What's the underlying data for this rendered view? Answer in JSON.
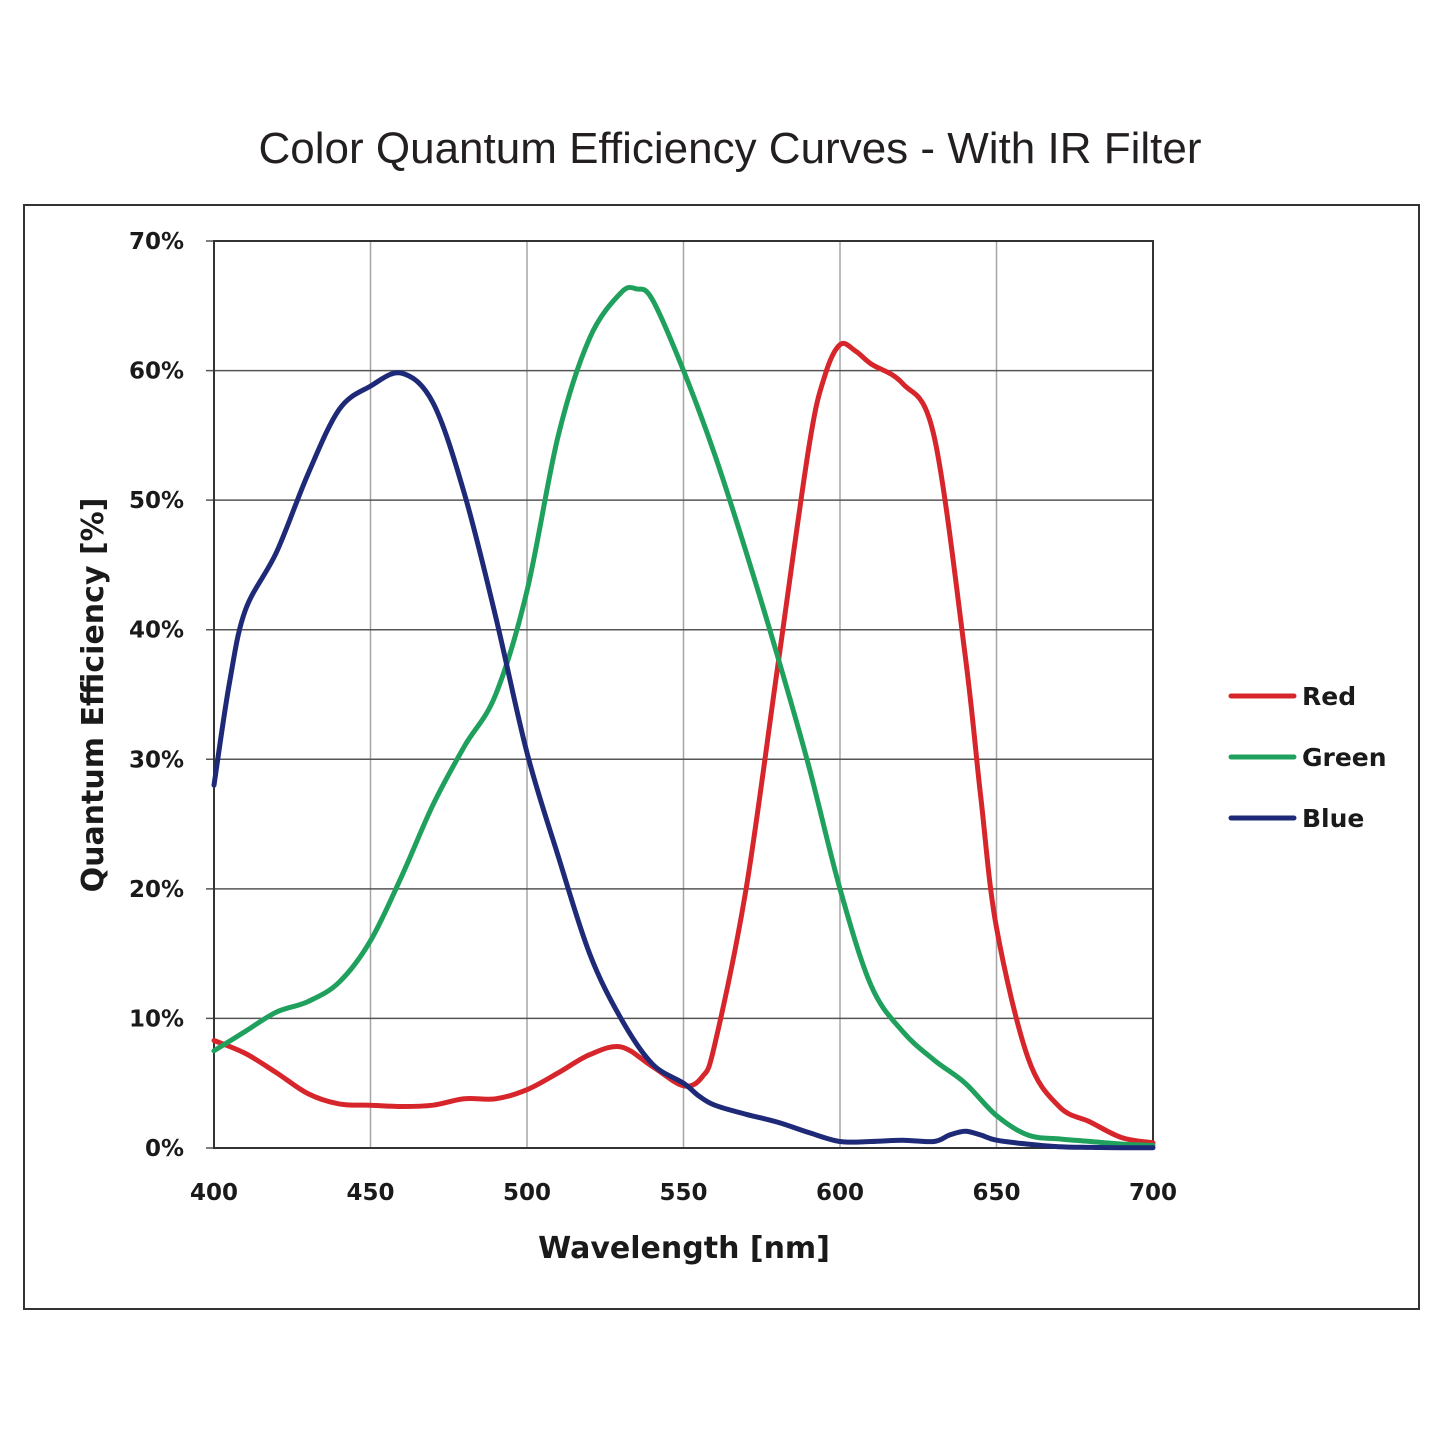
{
  "chart_data": {
    "type": "line",
    "title": "Color Quantum Efficiency Curves - With IR Filter",
    "xlabel": "Wavelength [nm]",
    "ylabel": "Quantum Efficiency [%]",
    "xlim": [
      400,
      700
    ],
    "ylim": [
      0,
      70
    ],
    "x_ticks": [
      400,
      450,
      500,
      550,
      600,
      650,
      700
    ],
    "y_ticks": [
      0,
      10,
      20,
      30,
      40,
      50,
      60,
      70
    ],
    "y_tick_labels": [
      "0%",
      "10%",
      "20%",
      "30%",
      "40%",
      "50%",
      "60%",
      "70%"
    ],
    "grid": true,
    "legend_position": "right",
    "series": [
      {
        "name": "Red",
        "color": "#d7262b",
        "x": [
          400,
          410,
          420,
          430,
          440,
          450,
          460,
          470,
          480,
          490,
          500,
          510,
          520,
          530,
          540,
          550,
          556,
          560,
          570,
          580,
          590,
          595,
          600,
          605,
          610,
          620,
          630,
          640,
          645,
          650,
          660,
          670,
          680,
          690,
          700
        ],
        "y": [
          8.3,
          7.3,
          5.8,
          4.2,
          3.4,
          3.3,
          3.2,
          3.3,
          3.8,
          3.8,
          4.5,
          5.8,
          7.2,
          7.8,
          6.3,
          4.8,
          5.5,
          8.0,
          20.0,
          37.0,
          54.0,
          59.5,
          62.0,
          61.5,
          60.5,
          59.0,
          55.0,
          38.0,
          27.0,
          17.0,
          7.0,
          3.2,
          2.0,
          0.8,
          0.4
        ]
      },
      {
        "name": "Green",
        "color": "#1fa15d",
        "x": [
          400,
          410,
          420,
          430,
          440,
          450,
          460,
          470,
          480,
          490,
          500,
          510,
          520,
          530,
          535,
          540,
          550,
          560,
          570,
          580,
          590,
          600,
          610,
          620,
          630,
          640,
          650,
          660,
          670,
          680,
          690,
          700
        ],
        "y": [
          7.5,
          9.0,
          10.5,
          11.3,
          12.8,
          16.0,
          21.0,
          26.5,
          31.0,
          35.0,
          43.0,
          55.0,
          62.5,
          66.0,
          66.3,
          65.5,
          60.0,
          53.5,
          46.0,
          38.0,
          29.5,
          20.0,
          12.5,
          9.0,
          6.8,
          5.0,
          2.5,
          1.0,
          0.7,
          0.5,
          0.3,
          0.2
        ]
      },
      {
        "name": "Blue",
        "color": "#1e2a78",
        "x": [
          400,
          405,
          410,
          420,
          430,
          440,
          450,
          460,
          470,
          480,
          490,
          500,
          510,
          520,
          530,
          540,
          550,
          555,
          560,
          570,
          580,
          590,
          600,
          610,
          620,
          630,
          635,
          640,
          645,
          650,
          660,
          670,
          680,
          690,
          700
        ],
        "y": [
          28.0,
          36.0,
          41.5,
          46.0,
          52.0,
          57.0,
          58.8,
          59.8,
          57.5,
          50.5,
          41.0,
          30.5,
          22.5,
          15.0,
          10.0,
          6.5,
          5.0,
          4.0,
          3.3,
          2.6,
          2.0,
          1.2,
          0.5,
          0.5,
          0.6,
          0.5,
          1.0,
          1.3,
          1.0,
          0.6,
          0.3,
          0.1,
          0.05,
          0.02,
          0.02
        ]
      }
    ]
  }
}
